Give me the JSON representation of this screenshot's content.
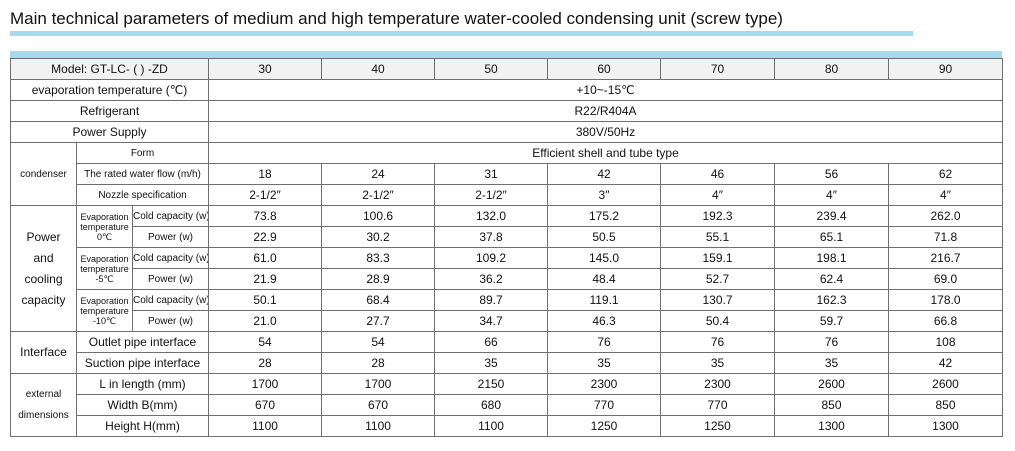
{
  "title": "Main technical parameters of medium and high temperature water-cooled condensing unit (screw type)",
  "header": {
    "label": "Model:  GT-LC-  ( )  -ZD",
    "models": [
      "30",
      "40",
      "50",
      "60",
      "70",
      "80",
      "90"
    ]
  },
  "evap_temp": {
    "label": "evaporation temperature (℃)",
    "value": "+10~-15℃"
  },
  "refrigerant": {
    "label": "Refrigerant",
    "value": "R22/R404A"
  },
  "power_supply": {
    "label": "Power Supply",
    "value": "380V/50Hz"
  },
  "condenser": {
    "label": "condenser",
    "form": {
      "label": "Form",
      "value": "Efficient shell and tube type"
    },
    "water_flow": {
      "label": "The rated water flow (m/h)",
      "values": [
        "18",
        "24",
        "31",
        "42",
        "46",
        "56",
        "62"
      ]
    },
    "nozzle": {
      "label": "Nozzle specification",
      "values": [
        "2-1/2″",
        "2-1/2″",
        "2-1/2″",
        "3″",
        "4″",
        "4″",
        "4″"
      ]
    }
  },
  "capacity": {
    "label_lines": [
      "Power",
      "and",
      "cooling",
      "capacity"
    ],
    "cold_label": "Cold capacity (w)",
    "power_label": "Power (w)",
    "groups": [
      {
        "l1": "Evaporation",
        "l2": "temperature",
        "l3": "0℃",
        "cold": [
          "73.8",
          "100.6",
          "132.0",
          "175.2",
          "192.3",
          "239.4",
          "262.0"
        ],
        "power": [
          "22.9",
          "30.2",
          "37.8",
          "50.5",
          "55.1",
          "65.1",
          "71.8"
        ]
      },
      {
        "l1": "Evaporation",
        "l2": "temperature",
        "l3": "-5℃",
        "cold": [
          "61.0",
          "83.3",
          "109.2",
          "145.0",
          "159.1",
          "198.1",
          "216.7"
        ],
        "power": [
          "21.9",
          "28.9",
          "36.2",
          "48.4",
          "52.7",
          "62.4",
          "69.0"
        ]
      },
      {
        "l1": "Evaporation",
        "l2": "temperature",
        "l3": "-10℃",
        "cold": [
          "50.1",
          "68.4",
          "89.7",
          "119.1",
          "130.7",
          "162.3",
          "178.0"
        ],
        "power": [
          "21.0",
          "27.7",
          "34.7",
          "46.3",
          "50.4",
          "59.7",
          "66.8"
        ]
      }
    ]
  },
  "interface": {
    "label": "Interface",
    "outlet": {
      "label": "Outlet pipe interface",
      "values": [
        "54",
        "54",
        "66",
        "76",
        "76",
        "76",
        "108"
      ]
    },
    "suction": {
      "label": "Suction pipe interface",
      "values": [
        "28",
        "28",
        "35",
        "35",
        "35",
        "35",
        "42"
      ]
    }
  },
  "dimensions": {
    "label_lines": [
      "external",
      "dimensions"
    ],
    "length": {
      "label": "L in length (mm)",
      "values": [
        "1700",
        "1700",
        "2150",
        "2300",
        "2300",
        "2600",
        "2600"
      ]
    },
    "width": {
      "label": "Width B(mm)",
      "values": [
        "670",
        "670",
        "680",
        "770",
        "770",
        "850",
        "850"
      ]
    },
    "height": {
      "label": "Height H(mm)",
      "values": [
        "1100",
        "1100",
        "1100",
        "1250",
        "1250",
        "1300",
        "1300"
      ]
    }
  }
}
